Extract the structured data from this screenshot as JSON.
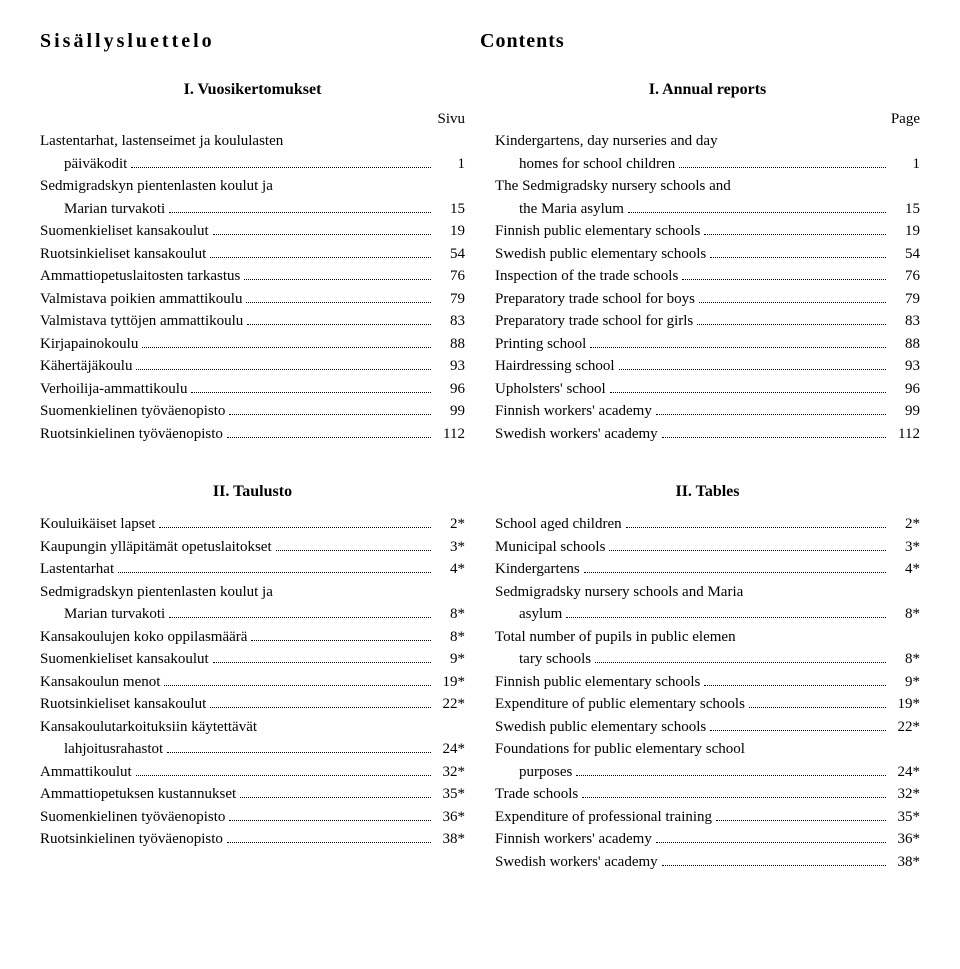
{
  "header": {
    "left": "Sisällysluettelo",
    "right": "Contents"
  },
  "left": {
    "s1": {
      "title": "I. Vuosikertomukset",
      "pageLabel": "Sivu",
      "items": [
        {
          "label": "Lastentarhat, lastenseimet ja koululasten päiväkodit",
          "indentSecond": true,
          "second": "päiväkodit",
          "page": "1"
        },
        {
          "label": "Sedmigradskyn pientenlasten koulut ja Marian turvakoti",
          "indentSecond": true,
          "second": "Marian turvakoti",
          "page": "15"
        },
        {
          "label": "Suomenkieliset kansakoulut",
          "page": "19"
        },
        {
          "label": "Ruotsinkieliset kansakoulut",
          "page": "54"
        },
        {
          "label": "Ammattiopetuslaitosten tarkastus",
          "page": "76"
        },
        {
          "label": "Valmistava poikien ammattikoulu",
          "page": "79"
        },
        {
          "label": "Valmistava tyttöjen ammattikoulu",
          "page": "83"
        },
        {
          "label": "Kirjapainokoulu",
          "page": "88"
        },
        {
          "label": "Kähertäjäkoulu",
          "page": "93"
        },
        {
          "label": "Verhoilija-ammattikoulu",
          "page": "96"
        },
        {
          "label": "Suomenkielinen työväenopisto",
          "page": "99"
        },
        {
          "label": "Ruotsinkielinen työväenopisto",
          "page": "112"
        }
      ]
    },
    "s2": {
      "title": "II. Taulusto",
      "items": [
        {
          "label": "Kouluikäiset lapset",
          "page": "2*"
        },
        {
          "label": "Kaupungin ylläpitämät opetuslaitokset",
          "page": "3*"
        },
        {
          "label": "Lastentarhat",
          "page": "4*"
        },
        {
          "label": "Sedmigradskyn pientenlasten koulut ja Marian turvakoti",
          "indentSecond": true,
          "second": "Marian turvakoti",
          "page": "8*"
        },
        {
          "label": "Kansakoulujen koko oppilasmäärä",
          "page": "8*"
        },
        {
          "label": "Suomenkieliset kansakoulut",
          "page": "9*"
        },
        {
          "label": "Kansakoulun menot",
          "page": "19*"
        },
        {
          "label": "Ruotsinkieliset kansakoulut",
          "page": "22*"
        },
        {
          "label": "Kansakoulutarkoituksiin käytettävät lahjoitusrahastot",
          "indentSecond": true,
          "second": "lahjoitusrahastot",
          "page": "24*"
        },
        {
          "label": "Ammattikoulut",
          "page": "32*"
        },
        {
          "label": "Ammattiopetuksen kustannukset",
          "page": "35*"
        },
        {
          "label": "Suomenkielinen työväenopisto",
          "page": "36*"
        },
        {
          "label": "Ruotsinkielinen työväenopisto",
          "page": "38*"
        }
      ]
    }
  },
  "right": {
    "s1": {
      "title": "I. Annual reports",
      "pageLabel": "Page",
      "items": [
        {
          "label": "Kindergartens, day nurseries and day homes for school children",
          "indentSecond": true,
          "second": "homes for school children",
          "page": "1"
        },
        {
          "label": "The Sedmigradsky nursery schools and the Maria asylum",
          "indentSecond": true,
          "second": "the Maria asylum",
          "page": "15"
        },
        {
          "label": "Finnish public elementary schools",
          "page": "19"
        },
        {
          "label": "Swedish public elementary schools",
          "page": "54"
        },
        {
          "label": "Inspection of the trade schools",
          "page": "76"
        },
        {
          "label": "Preparatory trade school for boys",
          "page": "79"
        },
        {
          "label": "Preparatory trade school for girls",
          "page": "83"
        },
        {
          "label": "Printing school",
          "page": "88"
        },
        {
          "label": "Hairdressing school",
          "page": "93"
        },
        {
          "label": "Upholsters' school",
          "page": "96"
        },
        {
          "label": "Finnish workers' academy",
          "page": "99"
        },
        {
          "label": "Swedish workers' academy",
          "page": "112"
        }
      ]
    },
    "s2": {
      "title": "II. Tables",
      "items": [
        {
          "label": "School aged children",
          "page": "2*"
        },
        {
          "label": "Municipal schools",
          "page": "3*"
        },
        {
          "label": "Kindergartens",
          "page": "4*"
        },
        {
          "label": "Sedmigradsky nursery schools and Maria asylum",
          "indentSecond": true,
          "second": "asylum",
          "page": "8*"
        },
        {
          "label": "Total number of pupils in public elementary schools",
          "indentSecond": true,
          "second": "tary schools",
          "page": "8*"
        },
        {
          "label": "Finnish public elementary schools",
          "page": "9*"
        },
        {
          "label": "Expenditure of public elementary schools",
          "page": "19*"
        },
        {
          "label": "Swedish public elementary schools",
          "page": "22*"
        },
        {
          "label": "Foundations for public elementary school purposes",
          "indentSecond": true,
          "second": "purposes",
          "page": "24*"
        },
        {
          "label": "Trade schools",
          "page": "32*"
        },
        {
          "label": "Expenditure of professional training",
          "page": "35*"
        },
        {
          "label": "Finnish workers' academy",
          "page": "36*"
        },
        {
          "label": "Swedish workers' academy",
          "page": "38*"
        }
      ]
    }
  }
}
